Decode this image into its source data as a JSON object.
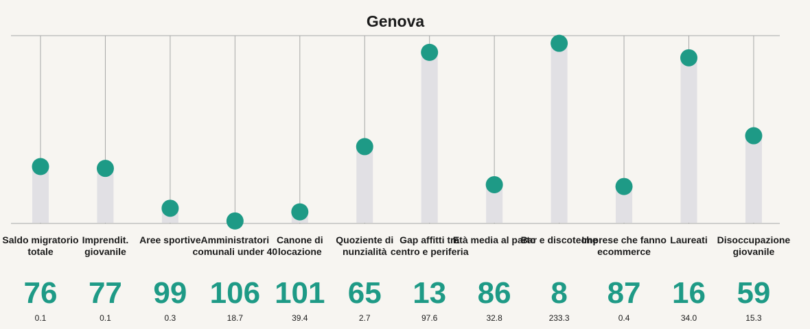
{
  "chart_data": {
    "type": "lollipop",
    "title": "Genova",
    "categories": [
      "Saldo migratorio totale",
      "Imprendit. giovanile",
      "Aree sportive",
      "Amministratori comunali under 40",
      "Canone di locazione",
      "Quoziente di nunzialità",
      "Gap affitti tra centro e periferia",
      "Età media al parto",
      "Bar e discoteche",
      "Imprese che fanno ecommerce",
      "Laureati",
      "Disoccupazione giovanile"
    ],
    "ranks": [
      "76",
      "77",
      "99",
      "106",
      "101",
      "65",
      "13",
      "86",
      "8",
      "87",
      "16",
      "59"
    ],
    "values": [
      "0.1",
      "0.1",
      "0.3",
      "18.7",
      "39.4",
      "2.7",
      "97.6",
      "32.8",
      "233.3",
      "0.4",
      "34.0",
      "15.3"
    ],
    "score_rank_max": 107,
    "colors": {
      "dot": "#1e9a86",
      "bar": "#e1e0e4",
      "gridline": "#a6a6a6",
      "rank_text": "#1e9a86",
      "background": "#f7f5f1"
    },
    "grid": true
  }
}
